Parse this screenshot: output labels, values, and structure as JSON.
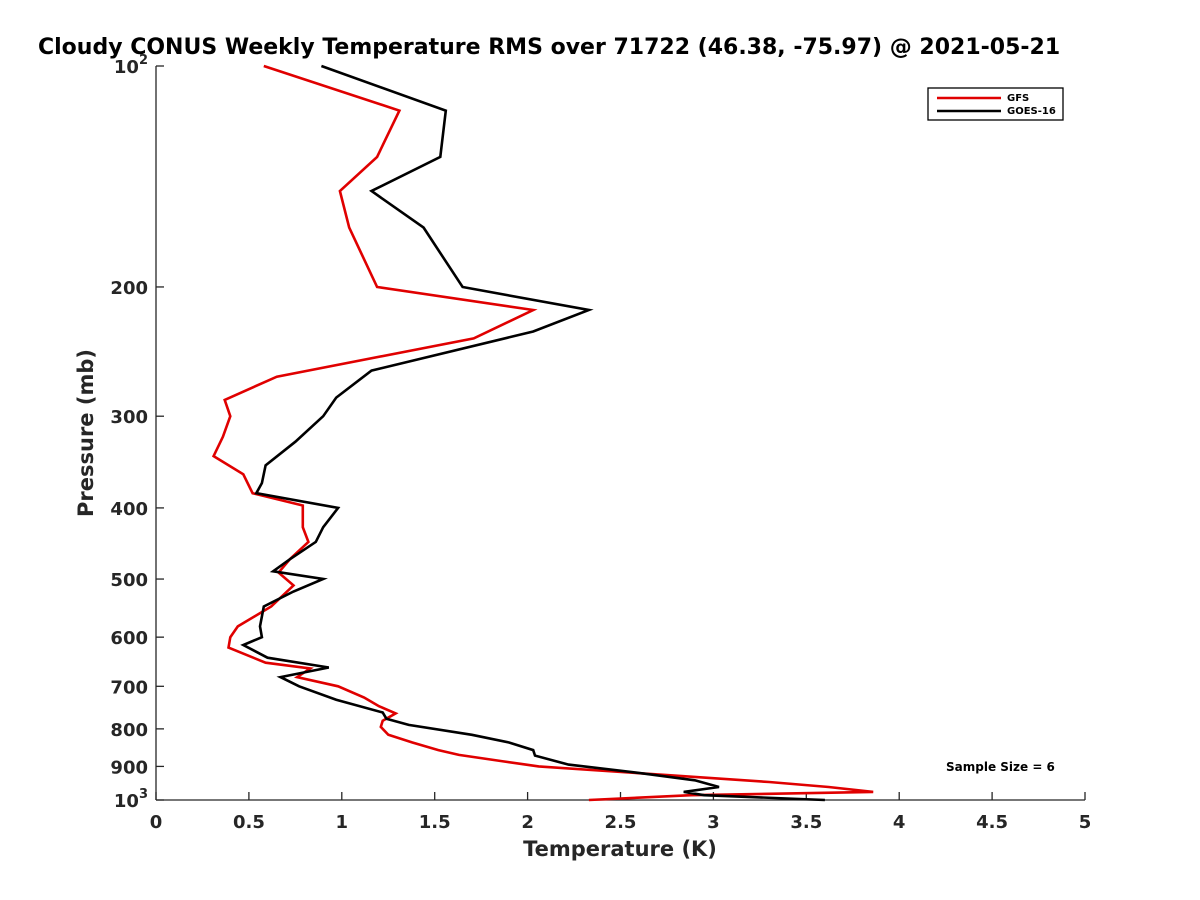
{
  "chart_data": {
    "type": "line",
    "title": "Cloudy CONUS Weekly Temperature RMS over 71722 (46.38, -75.97) @ 2021-05-21",
    "xlabel": "Temperature (K)",
    "ylabel": "Pressure (mb)",
    "xlim": [
      0,
      5
    ],
    "ylim": [
      100,
      1000
    ],
    "yscale": "log",
    "y_reversed": true,
    "xticks": [
      0,
      0.5,
      1,
      1.5,
      2,
      2.5,
      3,
      3.5,
      4,
      4.5,
      5
    ],
    "xtick_labels": [
      "0",
      "0.5",
      "1",
      "1.5",
      "2",
      "2.5",
      "3",
      "3.5",
      "4",
      "4.5",
      "5"
    ],
    "yticks": [
      100,
      200,
      300,
      400,
      500,
      600,
      700,
      800,
      900,
      1000
    ],
    "ytick_labels": [
      {
        "base": "10",
        "exp": "2"
      },
      {
        "base": "200",
        "exp": ""
      },
      {
        "base": "300",
        "exp": ""
      },
      {
        "base": "400",
        "exp": ""
      },
      {
        "base": "500",
        "exp": ""
      },
      {
        "base": "600",
        "exp": ""
      },
      {
        "base": "700",
        "exp": ""
      },
      {
        "base": "800",
        "exp": ""
      },
      {
        "base": "900",
        "exp": ""
      },
      {
        "base": "10",
        "exp": "3"
      }
    ],
    "grid": false,
    "legend_position": "top-right",
    "annotation": "Sample Size = 6",
    "series": [
      {
        "name": "GFS",
        "color": "#e00000",
        "points": [
          [
            0.58,
            100
          ],
          [
            1.31,
            115
          ],
          [
            1.19,
            133
          ],
          [
            0.99,
            148
          ],
          [
            1.04,
            166
          ],
          [
            1.19,
            200
          ],
          [
            2.03,
            215
          ],
          [
            1.71,
            235
          ],
          [
            0.65,
            265
          ],
          [
            0.37,
            285
          ],
          [
            0.4,
            300
          ],
          [
            0.36,
            320
          ],
          [
            0.31,
            340
          ],
          [
            0.47,
            360
          ],
          [
            0.52,
            382
          ],
          [
            0.79,
            397
          ],
          [
            0.79,
            425
          ],
          [
            0.82,
            445
          ],
          [
            0.72,
            470
          ],
          [
            0.66,
            490
          ],
          [
            0.74,
            510
          ],
          [
            0.62,
            545
          ],
          [
            0.44,
            580
          ],
          [
            0.4,
            600
          ],
          [
            0.39,
            620
          ],
          [
            0.59,
            650
          ],
          [
            0.83,
            662
          ],
          [
            0.76,
            680
          ],
          [
            0.98,
            700
          ],
          [
            1.12,
            725
          ],
          [
            1.2,
            745
          ],
          [
            1.29,
            762
          ],
          [
            1.22,
            780
          ],
          [
            1.21,
            795
          ],
          [
            1.25,
            815
          ],
          [
            1.38,
            835
          ],
          [
            1.52,
            855
          ],
          [
            1.63,
            868
          ],
          [
            1.86,
            885
          ],
          [
            2.06,
            900
          ],
          [
            2.75,
            925
          ],
          [
            3.3,
            945
          ],
          [
            3.62,
            960
          ],
          [
            3.86,
            975
          ],
          [
            2.88,
            985
          ],
          [
            2.33,
            1000
          ]
        ]
      },
      {
        "name": "GOES-16",
        "color": "#000000",
        "points": [
          [
            0.89,
            100
          ],
          [
            1.56,
            115
          ],
          [
            1.53,
            133
          ],
          [
            1.16,
            148
          ],
          [
            1.44,
            166
          ],
          [
            1.65,
            200
          ],
          [
            2.33,
            215
          ],
          [
            2.03,
            230
          ],
          [
            1.16,
            260
          ],
          [
            0.97,
            283
          ],
          [
            0.9,
            300
          ],
          [
            0.75,
            325
          ],
          [
            0.59,
            350
          ],
          [
            0.57,
            370
          ],
          [
            0.54,
            382
          ],
          [
            0.98,
            400
          ],
          [
            0.9,
            425
          ],
          [
            0.86,
            445
          ],
          [
            0.72,
            470
          ],
          [
            0.63,
            488
          ],
          [
            0.9,
            500
          ],
          [
            0.74,
            520
          ],
          [
            0.58,
            545
          ],
          [
            0.56,
            580
          ],
          [
            0.57,
            600
          ],
          [
            0.47,
            615
          ],
          [
            0.6,
            640
          ],
          [
            0.93,
            660
          ],
          [
            0.67,
            680
          ],
          [
            0.77,
            700
          ],
          [
            0.97,
            730
          ],
          [
            1.22,
            760
          ],
          [
            1.24,
            775
          ],
          [
            1.36,
            790
          ],
          [
            1.7,
            815
          ],
          [
            1.9,
            835
          ],
          [
            2.03,
            855
          ],
          [
            2.04,
            870
          ],
          [
            2.22,
            895
          ],
          [
            2.62,
            920
          ],
          [
            2.9,
            940
          ],
          [
            3.03,
            960
          ],
          [
            2.84,
            975
          ],
          [
            2.95,
            985
          ],
          [
            3.6,
            1000
          ]
        ]
      }
    ]
  }
}
